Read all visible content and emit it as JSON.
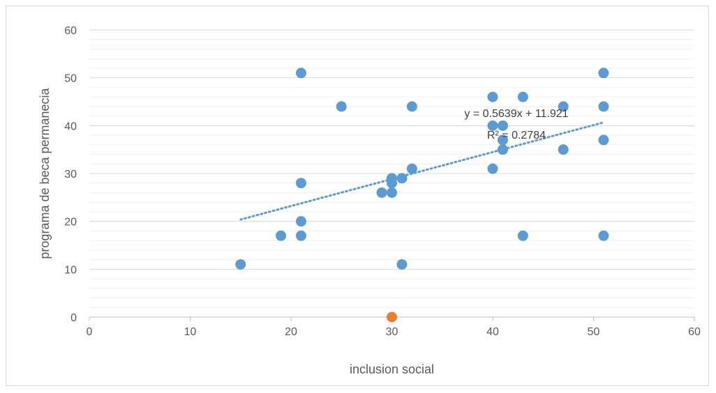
{
  "chart_data": {
    "type": "scatter",
    "title": "",
    "xlabel": "inclusion social",
    "ylabel": "programa de beca permanecia",
    "xlim": [
      0,
      60
    ],
    "ylim": [
      0,
      60
    ],
    "x_ticks": [
      "0",
      "10",
      "20",
      "30",
      "40",
      "50",
      "60"
    ],
    "y_ticks": [
      "0",
      "10",
      "20",
      "30",
      "40",
      "50",
      "60"
    ],
    "grid": true,
    "legend": "none",
    "series": [
      {
        "color": "#5b9bd5",
        "points": [
          [
            21,
            51
          ],
          [
            51,
            51
          ],
          [
            40,
            46
          ],
          [
            43,
            46
          ],
          [
            25,
            44
          ],
          [
            32,
            44
          ],
          [
            47,
            44
          ],
          [
            51,
            44
          ],
          [
            40,
            40
          ],
          [
            41,
            40
          ],
          [
            41,
            37
          ],
          [
            51,
            37
          ],
          [
            41,
            35
          ],
          [
            47,
            35
          ],
          [
            32,
            31
          ],
          [
            40,
            31
          ],
          [
            30,
            29
          ],
          [
            31,
            29
          ],
          [
            30,
            28
          ],
          [
            21,
            28
          ],
          [
            29,
            26
          ],
          [
            30,
            26
          ],
          [
            21,
            20
          ],
          [
            19,
            17
          ],
          [
            21,
            17
          ],
          [
            43,
            17
          ],
          [
            51,
            17
          ],
          [
            15,
            11
          ],
          [
            31,
            11
          ]
        ]
      },
      {
        "color": "#ed7d31",
        "points": [
          [
            30,
            0
          ]
        ]
      }
    ],
    "trendline": {
      "slope": 0.5639,
      "intercept": 11.921,
      "x_range": [
        15,
        51
      ],
      "style": "dotted",
      "color": "#5b9bd5",
      "equation_label": "y = 0.5639x + 11.921",
      "r2_label": "R² = 0.2784"
    }
  }
}
